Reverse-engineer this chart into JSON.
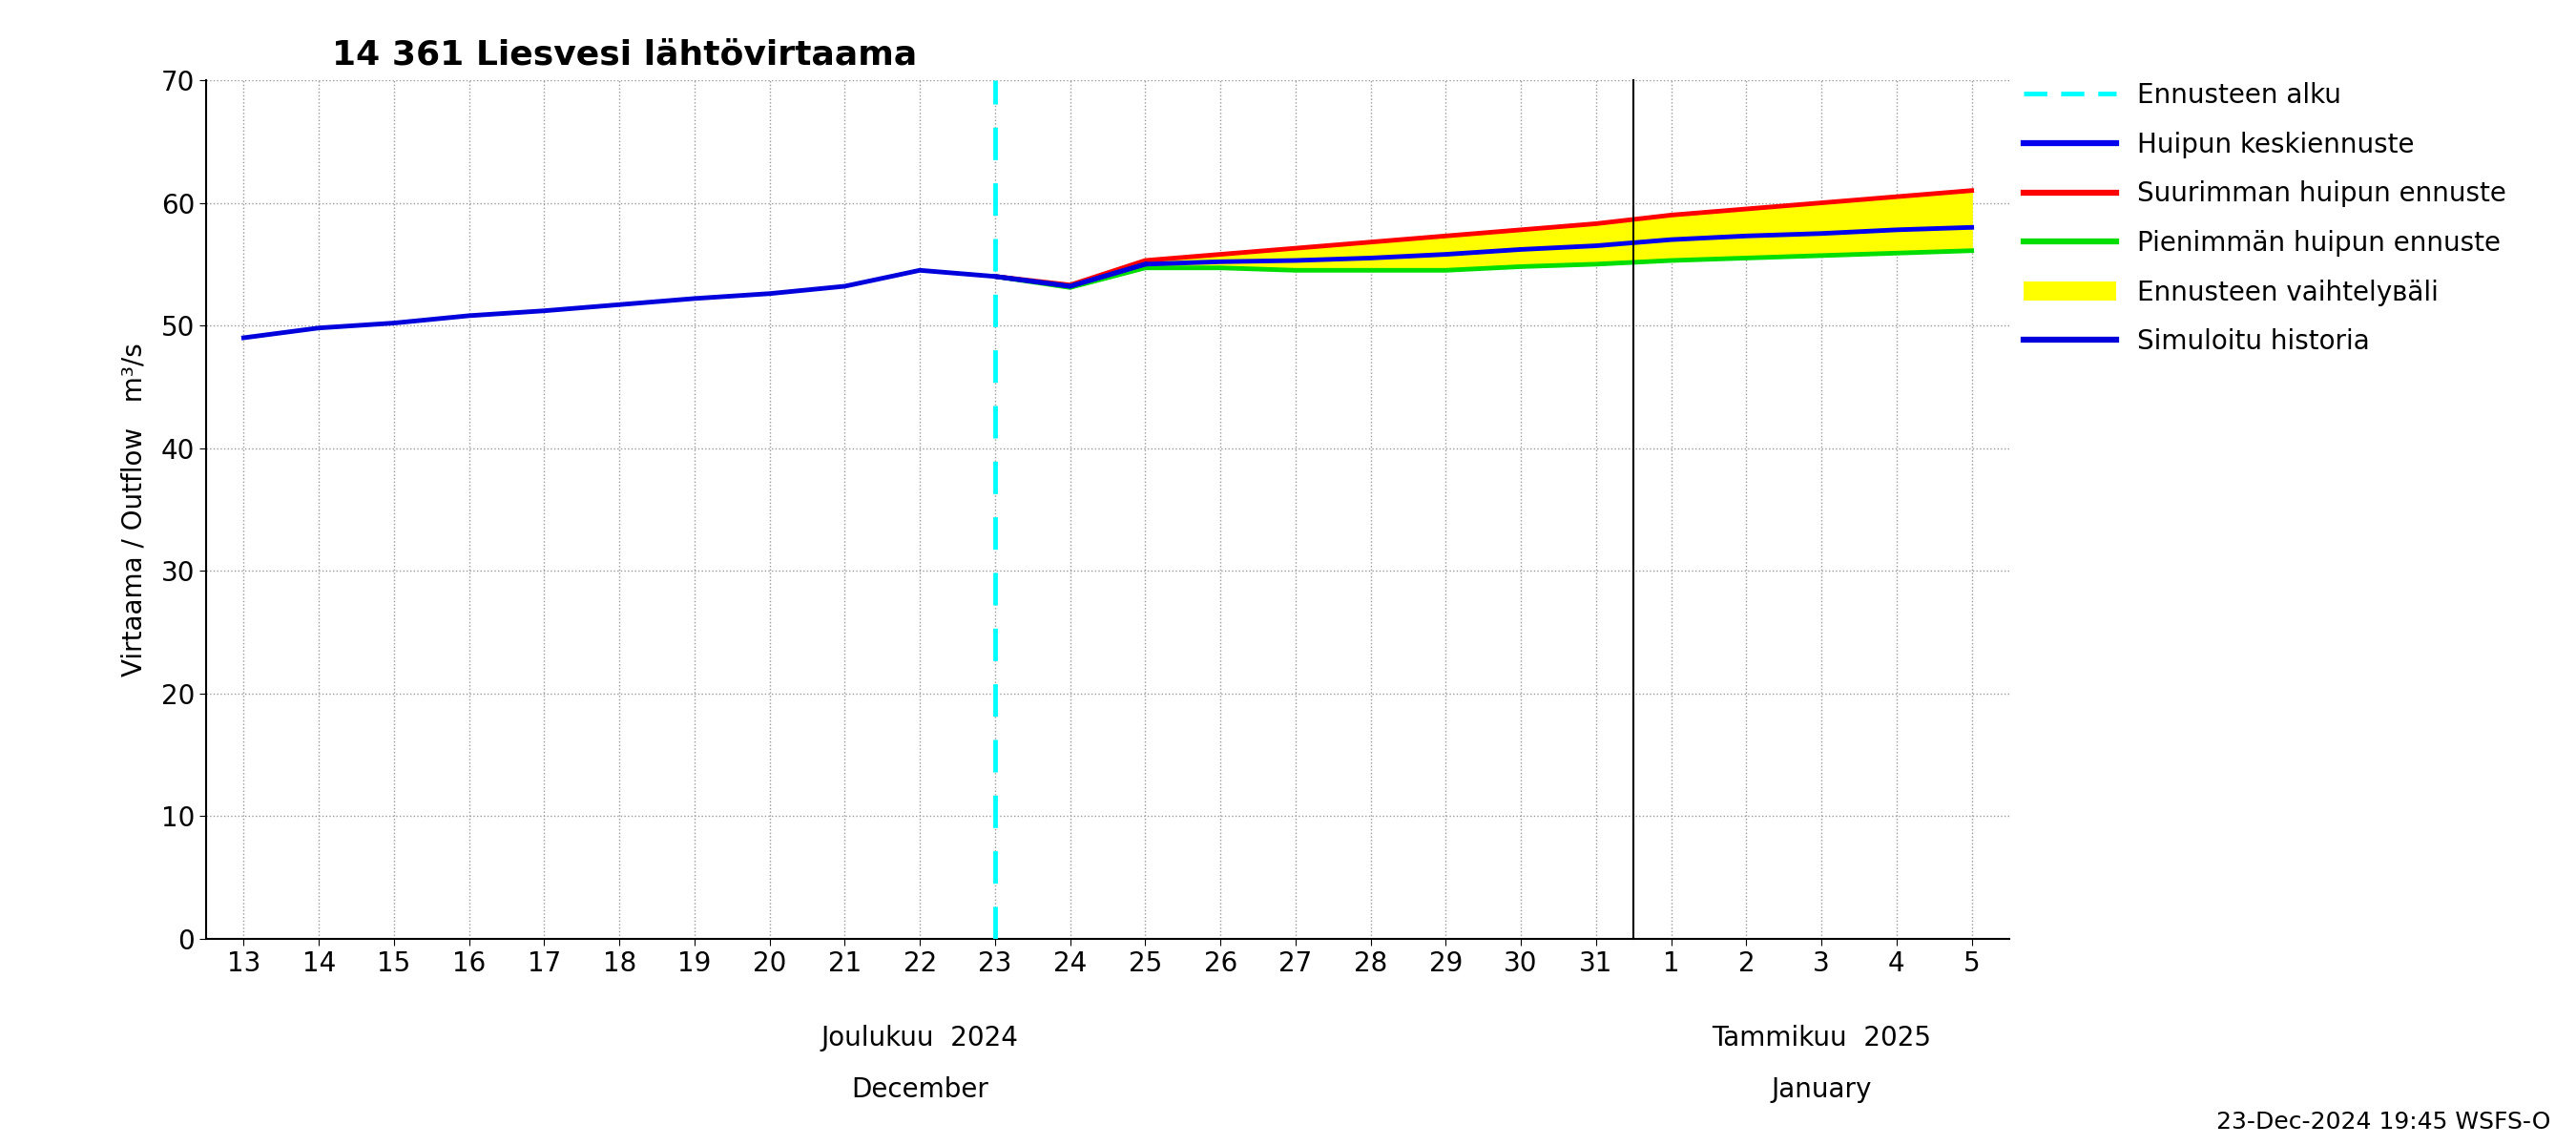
{
  "title": "14 361 Liesvesi lähtövirtaama",
  "ylabel_line1": "Virtaama / Outflow",
  "ylabel_line2": "m³/s",
  "ylim": [
    0,
    70
  ],
  "yticks": [
    0,
    10,
    20,
    30,
    40,
    50,
    60,
    70
  ],
  "background_color": "#ffffff",
  "color_history": "#0000dd",
  "color_mean": "#0000ee",
  "color_max": "#ff0000",
  "color_min": "#00dd00",
  "color_fill": "#ffff00",
  "color_cyan": "#00ffff",
  "color_grid": "#999999",
  "hist_x": [
    13,
    14,
    15,
    16,
    17,
    18,
    19,
    20,
    21,
    22,
    23,
    24,
    25
  ],
  "hist_y": [
    49.0,
    49.8,
    50.2,
    50.8,
    51.2,
    51.7,
    52.2,
    52.6,
    53.2,
    54.5,
    54.0,
    53.2,
    55.0
  ],
  "forecast_x": [
    23,
    24,
    25,
    26,
    27,
    28,
    29,
    30,
    31,
    32,
    33,
    34,
    35,
    36
  ],
  "mean_y": [
    54.0,
    53.2,
    55.0,
    55.2,
    55.3,
    55.5,
    55.8,
    56.2,
    56.5,
    57.0,
    57.3,
    57.5,
    57.8,
    58.0
  ],
  "max_y": [
    54.0,
    53.3,
    55.3,
    55.8,
    56.3,
    56.8,
    57.3,
    57.8,
    58.3,
    59.0,
    59.5,
    60.0,
    60.5,
    61.0
  ],
  "min_y": [
    54.0,
    53.1,
    54.7,
    54.7,
    54.5,
    54.5,
    54.5,
    54.8,
    55.0,
    55.3,
    55.5,
    55.7,
    55.9,
    56.1
  ],
  "vline_x": 23,
  "dec_ticks": [
    13,
    14,
    15,
    16,
    17,
    18,
    19,
    20,
    21,
    22,
    23,
    24,
    25,
    26,
    27,
    28,
    29,
    30,
    31
  ],
  "jan_ticks": [
    32,
    33,
    34,
    35,
    36
  ],
  "dec_labels": [
    "13",
    "14",
    "15",
    "16",
    "17",
    "18",
    "19",
    "20",
    "21",
    "22",
    "23",
    "24",
    "25",
    "26",
    "27",
    "28",
    "29",
    "30",
    "31"
  ],
  "jan_labels": [
    "1",
    "2",
    "3",
    "4",
    "5"
  ],
  "dec_month_text": "Joulukuu  2024",
  "dec_month_text2": "December",
  "jan_month_text": "Tammikuu  2025",
  "jan_month_text2": "January",
  "footer_text": "23-Dec-2024 19:45 WSFS-O",
  "legend_labels": [
    "Ennusteen alku",
    "Huipun keskiennuste",
    "Suurimman huipun ennuste",
    "Pienimmän huipun ennuste",
    "Ennusteen vaihtelувäli",
    "Simuloitu historia"
  ],
  "xlim_left": 12.5,
  "xlim_right": 36.5,
  "title_fontsize": 26,
  "tick_fontsize": 20,
  "month_fontsize": 20,
  "ylabel_fontsize": 20,
  "legend_fontsize": 20,
  "footer_fontsize": 18,
  "linewidth": 3.5
}
